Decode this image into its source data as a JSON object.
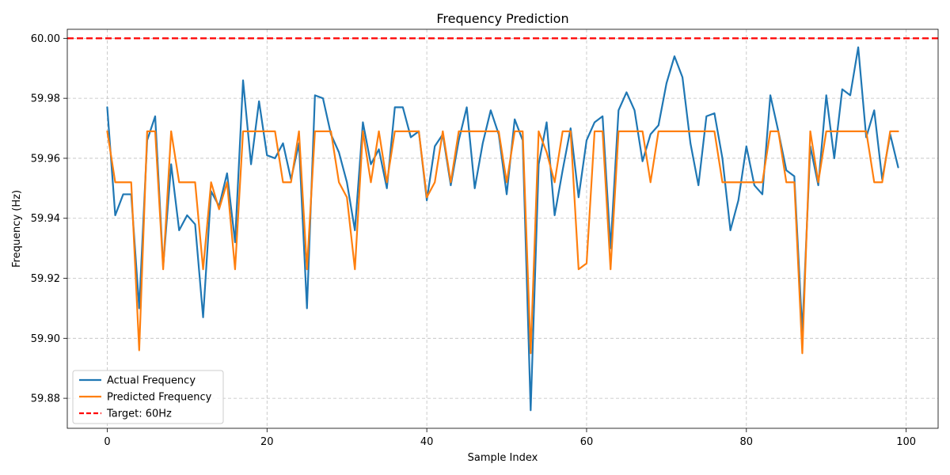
{
  "chart_data": {
    "type": "line",
    "title": "Frequency Prediction",
    "xlabel": "Sample Index",
    "ylabel": "Frequency (Hz)",
    "xlim": [
      -5,
      104
    ],
    "ylim": [
      59.87,
      60.003
    ],
    "xticks": [
      0,
      20,
      40,
      60,
      80,
      100
    ],
    "yticks": [
      59.88,
      59.9,
      59.92,
      59.94,
      59.96,
      59.98,
      60.0
    ],
    "ytick_labels": [
      "59.88",
      "59.90",
      "59.92",
      "59.94",
      "59.96",
      "59.98",
      "60.00"
    ],
    "grid": true,
    "legend_position": "lower-left",
    "target_line": {
      "name": "Target: 60Hz",
      "value": 60.0,
      "color": "#ff0000",
      "style": "dashed"
    },
    "series": [
      {
        "name": "Actual Frequency",
        "color": "#1f77b4",
        "values": [
          59.977,
          59.941,
          59.948,
          59.948,
          59.91,
          59.966,
          59.974,
          59.924,
          59.958,
          59.936,
          59.941,
          59.938,
          59.907,
          59.949,
          59.944,
          59.955,
          59.932,
          59.986,
          59.958,
          59.979,
          59.961,
          59.96,
          59.965,
          59.953,
          59.965,
          59.91,
          59.981,
          59.98,
          59.968,
          59.962,
          59.952,
          59.936,
          59.972,
          59.958,
          59.963,
          59.95,
          59.977,
          59.977,
          59.967,
          59.969,
          59.946,
          59.964,
          59.968,
          59.951,
          59.966,
          59.977,
          59.95,
          59.965,
          59.976,
          59.968,
          59.948,
          59.973,
          59.966,
          59.876,
          59.958,
          59.972,
          59.941,
          59.956,
          59.97,
          59.947,
          59.966,
          59.972,
          59.974,
          59.93,
          59.976,
          59.982,
          59.976,
          59.959,
          59.968,
          59.971,
          59.985,
          59.994,
          59.987,
          59.965,
          59.951,
          59.974,
          59.975,
          59.96,
          59.936,
          59.946,
          59.964,
          59.951,
          59.948,
          59.981,
          59.969,
          59.956,
          59.954,
          59.902,
          59.964,
          59.951,
          59.981,
          59.96,
          59.983,
          59.981,
          59.997,
          59.967,
          59.976,
          59.953,
          59.968,
          59.957
        ]
      },
      {
        "name": "Predicted Frequency",
        "color": "#ff7f0e",
        "values": [
          59.969,
          59.952,
          59.952,
          59.952,
          59.896,
          59.969,
          59.969,
          59.923,
          59.969,
          59.952,
          59.952,
          59.952,
          59.923,
          59.952,
          59.943,
          59.952,
          59.923,
          59.969,
          59.969,
          59.969,
          59.969,
          59.969,
          59.952,
          59.952,
          59.969,
          59.923,
          59.969,
          59.969,
          59.969,
          59.952,
          59.947,
          59.923,
          59.969,
          59.952,
          59.969,
          59.952,
          59.969,
          59.969,
          59.969,
          59.969,
          59.947,
          59.952,
          59.969,
          59.952,
          59.969,
          59.969,
          59.969,
          59.969,
          59.969,
          59.969,
          59.952,
          59.969,
          59.969,
          59.895,
          59.969,
          59.962,
          59.952,
          59.969,
          59.969,
          59.923,
          59.925,
          59.969,
          59.969,
          59.923,
          59.969,
          59.969,
          59.969,
          59.969,
          59.952,
          59.969,
          59.969,
          59.969,
          59.969,
          59.969,
          59.969,
          59.969,
          59.969,
          59.952,
          59.952,
          59.952,
          59.952,
          59.952,
          59.952,
          59.969,
          59.969,
          59.952,
          59.952,
          59.895,
          59.969,
          59.952,
          59.969,
          59.969,
          59.969,
          59.969,
          59.969,
          59.969,
          59.952,
          59.952,
          59.969,
          59.969
        ]
      }
    ]
  }
}
